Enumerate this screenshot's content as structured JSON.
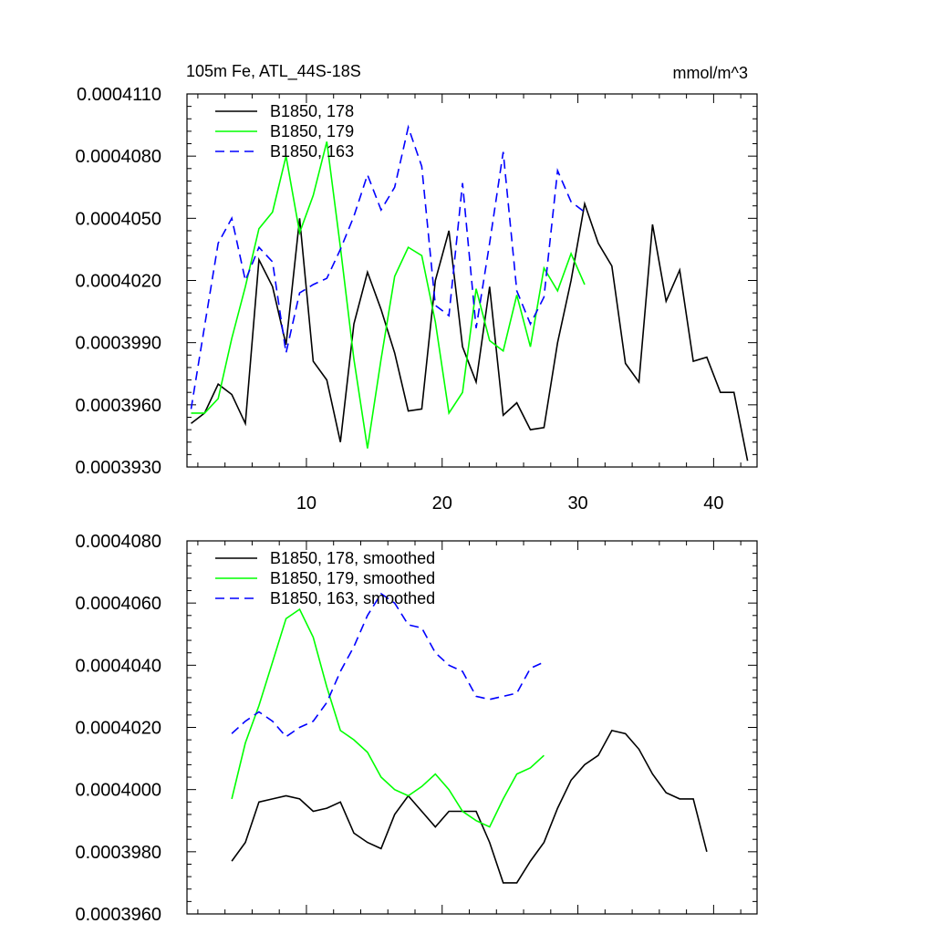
{
  "chart_data": [
    {
      "type": "line",
      "title_left": "105m Fe, ATL_44S-18S",
      "title_right": "mmol/m^3",
      "xlim": [
        1.2,
        43.2
      ],
      "ylim": [
        0.000393,
        0.000411
      ],
      "ytick_values": [
        0.000393,
        0.000396,
        0.000399,
        0.000402,
        0.000405,
        0.000408,
        0.000411
      ],
      "ytick_labels": [
        "0.0003930",
        "0.0003960",
        "0.0003990",
        "0.0004020",
        "0.0004050",
        "0.0004080",
        "0.0004110"
      ],
      "xtick_values": [
        10,
        20,
        30,
        40
      ],
      "xtick_labels": [
        "10",
        "20",
        "30",
        "40"
      ],
      "series": [
        {
          "name": "B1850, 178",
          "color": "#000000",
          "dash": "solid",
          "x": [
            1.5,
            2.5,
            3.5,
            4.5,
            5.5,
            6.5,
            7.5,
            8.5,
            9.5,
            10.5,
            11.5,
            12.5,
            13.5,
            14.5,
            15.5,
            16.5,
            17.5,
            18.5,
            19.5,
            20.5,
            21.5,
            22.5,
            23.5,
            24.5,
            25.5,
            26.5,
            27.5,
            28.5,
            29.5,
            30.5,
            31.5,
            32.5,
            33.5,
            34.5,
            35.5,
            36.5,
            37.5,
            38.5,
            39.5,
            40.5,
            41.5,
            42.5
          ],
          "y": [
            0.0003951,
            0.0003956,
            0.000397,
            0.0003965,
            0.0003951,
            0.000403,
            0.0004017,
            0.0003989,
            0.000405,
            0.0003981,
            0.0003972,
            0.0003942,
            0.0003999,
            0.0004024,
            0.0004006,
            0.0003985,
            0.0003957,
            0.0003958,
            0.000402,
            0.0004044,
            0.0003988,
            0.0003971,
            0.0004017,
            0.0003955,
            0.0003961,
            0.0003948,
            0.0003949,
            0.000399,
            0.000402,
            0.0004057,
            0.0004038,
            0.0004027,
            0.000398,
            0.0003971,
            0.0004047,
            0.000401,
            0.0004025,
            0.0003981,
            0.0003983,
            0.0003966,
            0.0003966,
            0.0003933
          ]
        },
        {
          "name": "B1850, 179",
          "color": "#00ff00",
          "dash": "solid",
          "x": [
            1.5,
            2.5,
            3.5,
            4.5,
            5.5,
            6.5,
            7.5,
            8.5,
            9.5,
            10.5,
            11.5,
            12.5,
            13.5,
            14.5,
            15.5,
            16.5,
            17.5,
            18.5,
            19.5,
            20.5,
            21.5,
            22.5,
            23.5,
            24.5,
            25.5,
            26.5,
            27.5,
            28.5,
            29.5,
            30.5
          ],
          "y": [
            0.0003956,
            0.0003956,
            0.0003963,
            0.0003992,
            0.0004017,
            0.0004045,
            0.0004053,
            0.000408,
            0.0004043,
            0.0004061,
            0.0004087,
            0.0004036,
            0.0003982,
            0.0003939,
            0.0003982,
            0.0004022,
            0.0004036,
            0.0004032,
            0.0004,
            0.0003956,
            0.0003966,
            0.0004016,
            0.0003991,
            0.0003986,
            0.0004013,
            0.0003988,
            0.0004026,
            0.0004015,
            0.0004033,
            0.0004018
          ]
        },
        {
          "name": "B1850, 163",
          "color": "#0000ff",
          "dash": "dashed",
          "x": [
            1.5,
            2.5,
            3.5,
            4.5,
            5.5,
            6.5,
            7.5,
            8.5,
            9.5,
            10.5,
            11.5,
            12.5,
            13.5,
            14.5,
            15.5,
            16.5,
            17.5,
            18.5,
            19.5,
            20.5,
            21.5,
            22.5,
            23.5,
            24.5,
            25.5,
            26.5,
            27.5,
            28.5,
            29.5,
            30.5
          ],
          "y": [
            0.0003958,
            0.0003998,
            0.0004038,
            0.000405,
            0.000402,
            0.0004036,
            0.0004029,
            0.0003985,
            0.0004014,
            0.0004018,
            0.0004021,
            0.0004035,
            0.0004051,
            0.0004071,
            0.0004054,
            0.0004065,
            0.0004094,
            0.0004075,
            0.0004008,
            0.0004003,
            0.0004067,
            0.0003997,
            0.0004038,
            0.0004082,
            0.0004015,
            0.0003999,
            0.0004012,
            0.0004073,
            0.0004058,
            0.0004053
          ]
        }
      ]
    },
    {
      "type": "line",
      "xlim": [
        1.2,
        43.2
      ],
      "ylim": [
        0.000396,
        0.000408
      ],
      "ytick_values": [
        0.000396,
        0.000398,
        0.0004,
        0.000402,
        0.000404,
        0.000406,
        0.000408
      ],
      "ytick_labels": [
        "0.0003960",
        "0.0003980",
        "0.0004000",
        "0.0004020",
        "0.0004040",
        "0.0004060",
        "0.0004080"
      ],
      "xtick_values": [
        10,
        20,
        30,
        40
      ],
      "xtick_labels": [],
      "series": [
        {
          "name": "B1850, 178, smoothed",
          "color": "#000000",
          "dash": "solid",
          "x": [
            4.5,
            5.5,
            6.5,
            7.5,
            8.5,
            9.5,
            10.5,
            11.5,
            12.5,
            13.5,
            14.5,
            15.5,
            16.5,
            17.5,
            18.5,
            19.5,
            20.5,
            21.5,
            22.5,
            23.5,
            24.5,
            25.5,
            26.5,
            27.5,
            28.5,
            29.5,
            30.5,
            31.5,
            32.5,
            33.5,
            34.5,
            35.5,
            36.5,
            37.5,
            38.5,
            39.5
          ],
          "y": [
            0.0003977,
            0.0003983,
            0.0003996,
            0.0003997,
            0.0003998,
            0.0003997,
            0.0003993,
            0.0003994,
            0.0003996,
            0.0003986,
            0.0003983,
            0.0003981,
            0.0003992,
            0.0003998,
            0.0003993,
            0.0003988,
            0.0003993,
            0.0003993,
            0.0003993,
            0.0003983,
            0.000397,
            0.000397,
            0.0003977,
            0.0003983,
            0.0003994,
            0.0004003,
            0.0004008,
            0.0004011,
            0.0004019,
            0.0004018,
            0.0004013,
            0.0004005,
            0.0003999,
            0.0003997,
            0.0003997,
            0.000398
          ]
        },
        {
          "name": "B1850, 179, smoothed",
          "color": "#00ff00",
          "dash": "solid",
          "x": [
            4.5,
            5.5,
            6.5,
            7.5,
            8.5,
            9.5,
            10.5,
            11.5,
            12.5,
            13.5,
            14.5,
            15.5,
            16.5,
            17.5,
            18.5,
            19.5,
            20.5,
            21.5,
            22.5,
            23.5,
            24.5,
            25.5,
            26.5,
            27.5
          ],
          "y": [
            0.0003997,
            0.0004015,
            0.0004027,
            0.0004041,
            0.0004055,
            0.0004058,
            0.0004049,
            0.0004033,
            0.0004019,
            0.0004016,
            0.0004012,
            0.0004004,
            0.0004,
            0.0003998,
            0.0004001,
            0.0004005,
            0.0004,
            0.0003993,
            0.000399,
            0.0003988,
            0.0003997,
            0.0004005,
            0.0004007,
            0.0004011
          ]
        },
        {
          "name": "B1850, 163, smoothed",
          "color": "#0000ff",
          "dash": "dashed",
          "x": [
            4.5,
            5.5,
            6.5,
            7.5,
            8.5,
            9.5,
            10.5,
            11.5,
            12.5,
            13.5,
            14.5,
            15.5,
            16.5,
            17.5,
            18.5,
            19.5,
            20.5,
            21.5,
            22.5,
            23.5,
            24.5,
            25.5,
            26.5,
            27.5
          ],
          "y": [
            0.0004018,
            0.0004022,
            0.0004025,
            0.0004022,
            0.0004017,
            0.000402,
            0.0004022,
            0.0004028,
            0.0004038,
            0.0004046,
            0.0004056,
            0.0004063,
            0.000406,
            0.0004053,
            0.0004052,
            0.0004044,
            0.000404,
            0.0004038,
            0.000403,
            0.0004029,
            0.000403,
            0.0004031,
            0.0004039,
            0.0004041
          ]
        }
      ]
    }
  ]
}
